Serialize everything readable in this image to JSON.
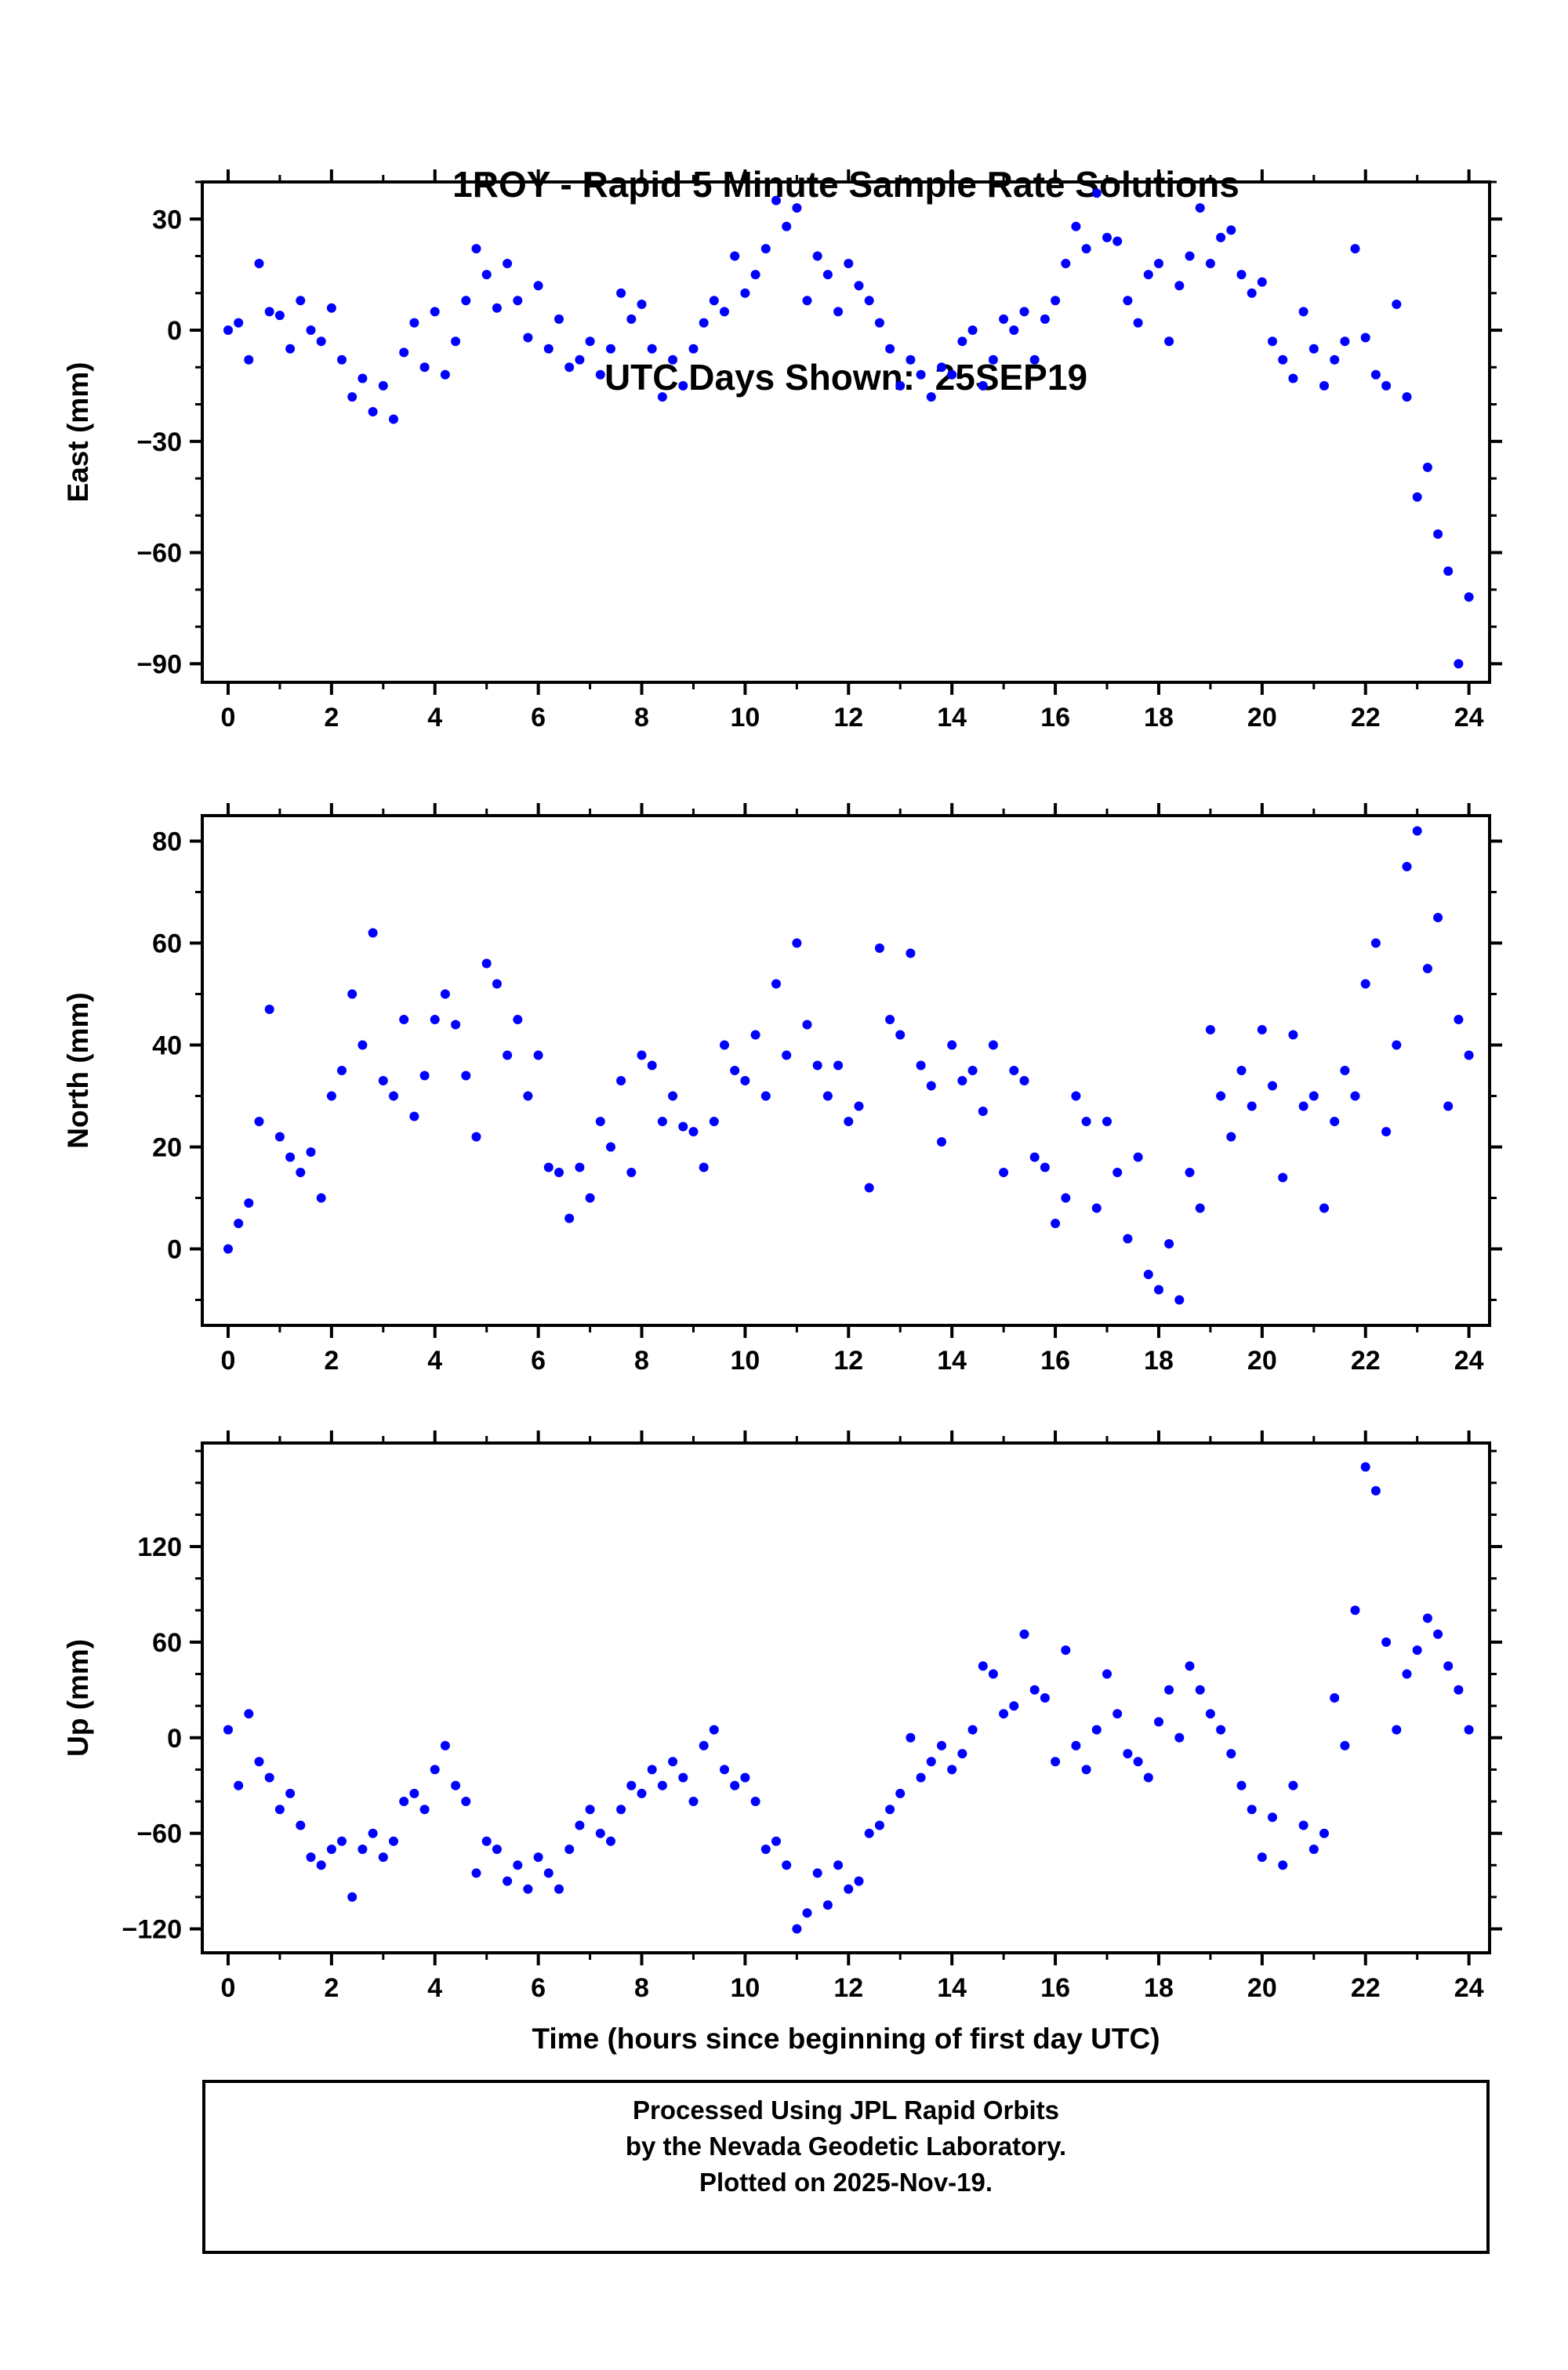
{
  "title": {
    "line1": "1ROY - Rapid 5 Minute Sample Rate Solutions",
    "line2": "UTC Days Shown:  25SEP19"
  },
  "footer": {
    "line1": "Processed Using JPL Rapid Orbits",
    "line2": "by the Nevada Geodetic Laboratory.",
    "line3": "Plotted on 2025-Nov-19."
  },
  "colors": {
    "point": "#0000ff",
    "frame": "#000000",
    "background": "#ffffff"
  },
  "chart_data": [
    {
      "type": "scatter",
      "name": "east",
      "ylabel": "East (mm)",
      "xlabel": "",
      "ylim": [
        -95,
        40
      ],
      "yticks": [
        30,
        0,
        -30,
        -60,
        -90
      ],
      "yminor": 10,
      "xlim": [
        -0.5,
        24.4
      ],
      "xticks": [
        0,
        2,
        4,
        6,
        8,
        10,
        12,
        14,
        16,
        18,
        20,
        22,
        24
      ],
      "xminor": 1,
      "x_start": 0,
      "x_step": 0.2,
      "values": [
        0,
        2,
        -8,
        18,
        5,
        4,
        -5,
        8,
        0,
        -3,
        6,
        -8,
        -18,
        -13,
        -22,
        -15,
        -24,
        -6,
        2,
        -10,
        5,
        -12,
        -3,
        8,
        22,
        15,
        6,
        18,
        8,
        -2,
        12,
        -5,
        3,
        -10,
        -8,
        -3,
        -12,
        -5,
        10,
        3,
        7,
        -5,
        -18,
        -8,
        -15,
        -5,
        2,
        8,
        5,
        20,
        10,
        15,
        22,
        35,
        28,
        33,
        8,
        20,
        15,
        5,
        18,
        12,
        8,
        2,
        -5,
        -15,
        -8,
        -12,
        -18,
        -10,
        -12,
        -3,
        0,
        -15,
        -8,
        3,
        0,
        5,
        -8,
        3,
        8,
        18,
        28,
        22,
        37,
        25,
        24,
        8,
        2,
        15,
        18,
        -3,
        12,
        20,
        33,
        18,
        25,
        27,
        15,
        10,
        13,
        -3,
        -8,
        -13,
        5,
        -5,
        -15,
        -8,
        -3,
        22,
        -2,
        -12,
        -15,
        7,
        -18,
        -45,
        -37,
        -55,
        -65,
        -90,
        -72
      ]
    },
    {
      "type": "scatter",
      "name": "north",
      "ylabel": "North (mm)",
      "xlabel": "",
      "ylim": [
        -15,
        85
      ],
      "yticks": [
        80,
        60,
        40,
        20,
        0
      ],
      "yminor": 10,
      "xlim": [
        -0.5,
        24.4
      ],
      "xticks": [
        0,
        2,
        4,
        6,
        8,
        10,
        12,
        14,
        16,
        18,
        20,
        22,
        24
      ],
      "xminor": 1,
      "x_start": 0,
      "x_step": 0.2,
      "values": [
        0,
        5,
        9,
        25,
        47,
        22,
        18,
        15,
        19,
        10,
        30,
        35,
        50,
        40,
        62,
        33,
        30,
        45,
        26,
        34,
        45,
        50,
        44,
        34,
        22,
        56,
        52,
        38,
        45,
        30,
        38,
        16,
        15,
        6,
        16,
        10,
        25,
        20,
        33,
        15,
        38,
        36,
        25,
        30,
        24,
        23,
        16,
        25,
        40,
        35,
        33,
        42,
        30,
        52,
        38,
        60,
        44,
        36,
        30,
        36,
        25,
        28,
        12,
        59,
        45,
        42,
        58,
        36,
        32,
        21,
        40,
        33,
        35,
        27,
        40,
        15,
        35,
        33,
        18,
        16,
        5,
        10,
        30,
        25,
        8,
        25,
        15,
        2,
        18,
        -5,
        -8,
        1,
        -10,
        15,
        8,
        43,
        30,
        22,
        35,
        28,
        43,
        32,
        14,
        42,
        28,
        30,
        8,
        25,
        35,
        30,
        52,
        60,
        23,
        40,
        75,
        82,
        55,
        65,
        28,
        45,
        38
      ]
    },
    {
      "type": "scatter",
      "name": "up",
      "ylabel": "Up (mm)",
      "xlabel": "Time (hours since beginning of first day UTC)",
      "ylim": [
        -135,
        185
      ],
      "yticks": [
        120,
        60,
        0,
        -60,
        -120
      ],
      "yminor": 20,
      "xlim": [
        -0.5,
        24.4
      ],
      "xticks": [
        0,
        2,
        4,
        6,
        8,
        10,
        12,
        14,
        16,
        18,
        20,
        22,
        24
      ],
      "xminor": 1,
      "x_start": 0,
      "x_step": 0.2,
      "values": [
        5,
        -30,
        15,
        -15,
        -25,
        -45,
        -35,
        -55,
        -75,
        -80,
        -70,
        -65,
        -100,
        -70,
        -60,
        -75,
        -65,
        -40,
        -35,
        -45,
        -20,
        -5,
        -30,
        -40,
        -85,
        -65,
        -70,
        -90,
        -80,
        -95,
        -75,
        -85,
        -95,
        -70,
        -55,
        -45,
        -60,
        -65,
        -45,
        -30,
        -35,
        -20,
        -30,
        -15,
        -25,
        -40,
        -5,
        5,
        -20,
        -30,
        -25,
        -40,
        -70,
        -65,
        -80,
        -120,
        -110,
        -85,
        -105,
        -80,
        -95,
        -90,
        -60,
        -55,
        -45,
        -35,
        0,
        -25,
        -15,
        -5,
        -20,
        -10,
        5,
        45,
        40,
        15,
        20,
        65,
        30,
        25,
        -15,
        55,
        -5,
        -20,
        5,
        40,
        15,
        -10,
        -15,
        -25,
        10,
        30,
        0,
        45,
        30,
        15,
        5,
        -10,
        -30,
        -45,
        -75,
        -50,
        -80,
        -30,
        -55,
        -70,
        -60,
        25,
        -5,
        80,
        170,
        155,
        60,
        5,
        40,
        55,
        75,
        65,
        45,
        30,
        5
      ]
    }
  ]
}
